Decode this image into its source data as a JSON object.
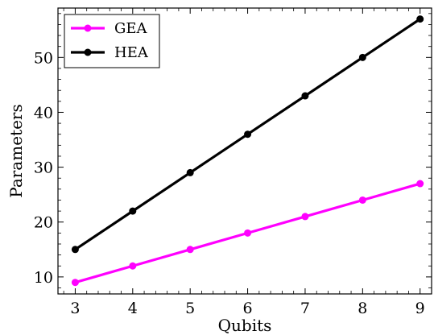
{
  "chart_data": {
    "type": "line",
    "title": "",
    "xlabel": "Qubits",
    "ylabel": "Parameters",
    "xlim": [
      2.7,
      9.2
    ],
    "ylim": [
      6.9,
      59.0
    ],
    "xticks": [
      3,
      4,
      5,
      6,
      7,
      8,
      9
    ],
    "yticks": [
      10,
      20,
      30,
      40,
      50
    ],
    "grid": false,
    "legend_position": "top-left",
    "tick_direction": "in",
    "x": [
      3,
      4,
      5,
      6,
      7,
      8,
      9
    ],
    "series": [
      {
        "name": "GEA",
        "color": "#ff00ff",
        "marker": "circle",
        "values": [
          9,
          12,
          15,
          18,
          21,
          24,
          27
        ]
      },
      {
        "name": "HEA",
        "color": "#000000",
        "marker": "circle",
        "values": [
          15,
          22,
          29,
          36,
          43,
          50,
          57
        ]
      }
    ]
  }
}
